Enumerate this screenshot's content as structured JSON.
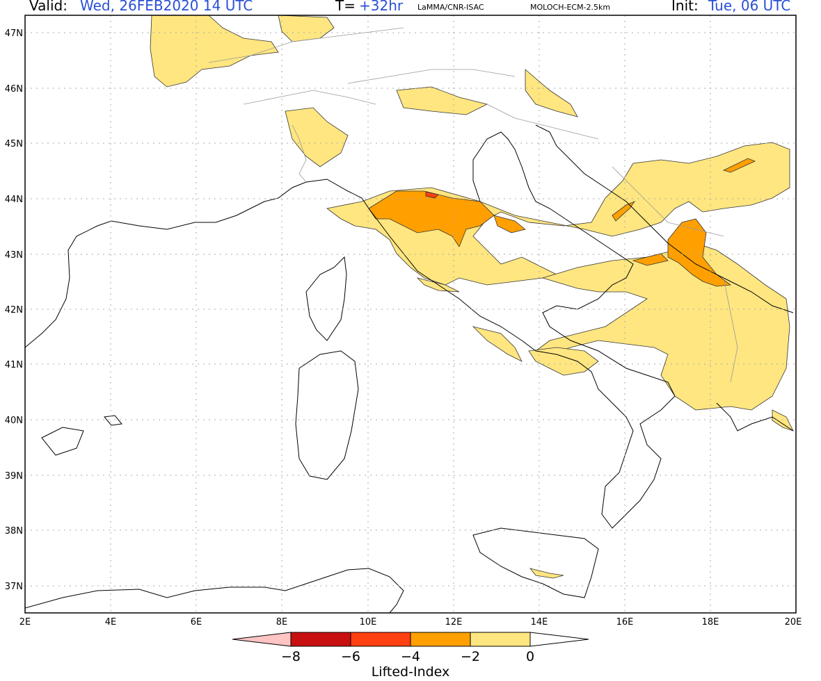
{
  "header": {
    "valid_label": "Valid:",
    "valid_value": "Wed, 26FEB2020   14 UTC",
    "t_label": "T=",
    "t_value": "+32hr",
    "source": "LaMMA/CNR-ISAC",
    "model": "MOLOCH-ECM-2.5km",
    "init_label": "Init:",
    "init_value": "Tue, 06 UTC"
  },
  "axes": {
    "lat_labels": [
      "47N",
      "46N",
      "45N",
      "44N",
      "43N",
      "42N",
      "41N",
      "40N",
      "39N",
      "38N",
      "37N"
    ],
    "lon_labels": [
      "2E",
      "4E",
      "6E",
      "8E",
      "10E",
      "12E",
      "14E",
      "16E",
      "18E",
      "20E"
    ]
  },
  "colorbar": {
    "title": "Lifted-Index",
    "ticks": [
      "−8",
      "−6",
      "−4",
      "−2",
      "0"
    ],
    "colors": [
      "#ffc4c4",
      "#c81010",
      "#ff4010",
      "#ffa000",
      "#ffe680"
    ]
  },
  "colors": {
    "li_0_to_m2": "#ffe680",
    "li_m2_to_m4": "#ffa000",
    "li_m4_to_m6": "#ff4010",
    "coast": "#000000",
    "border": "#999999",
    "grid": "#aaaaaa"
  }
}
